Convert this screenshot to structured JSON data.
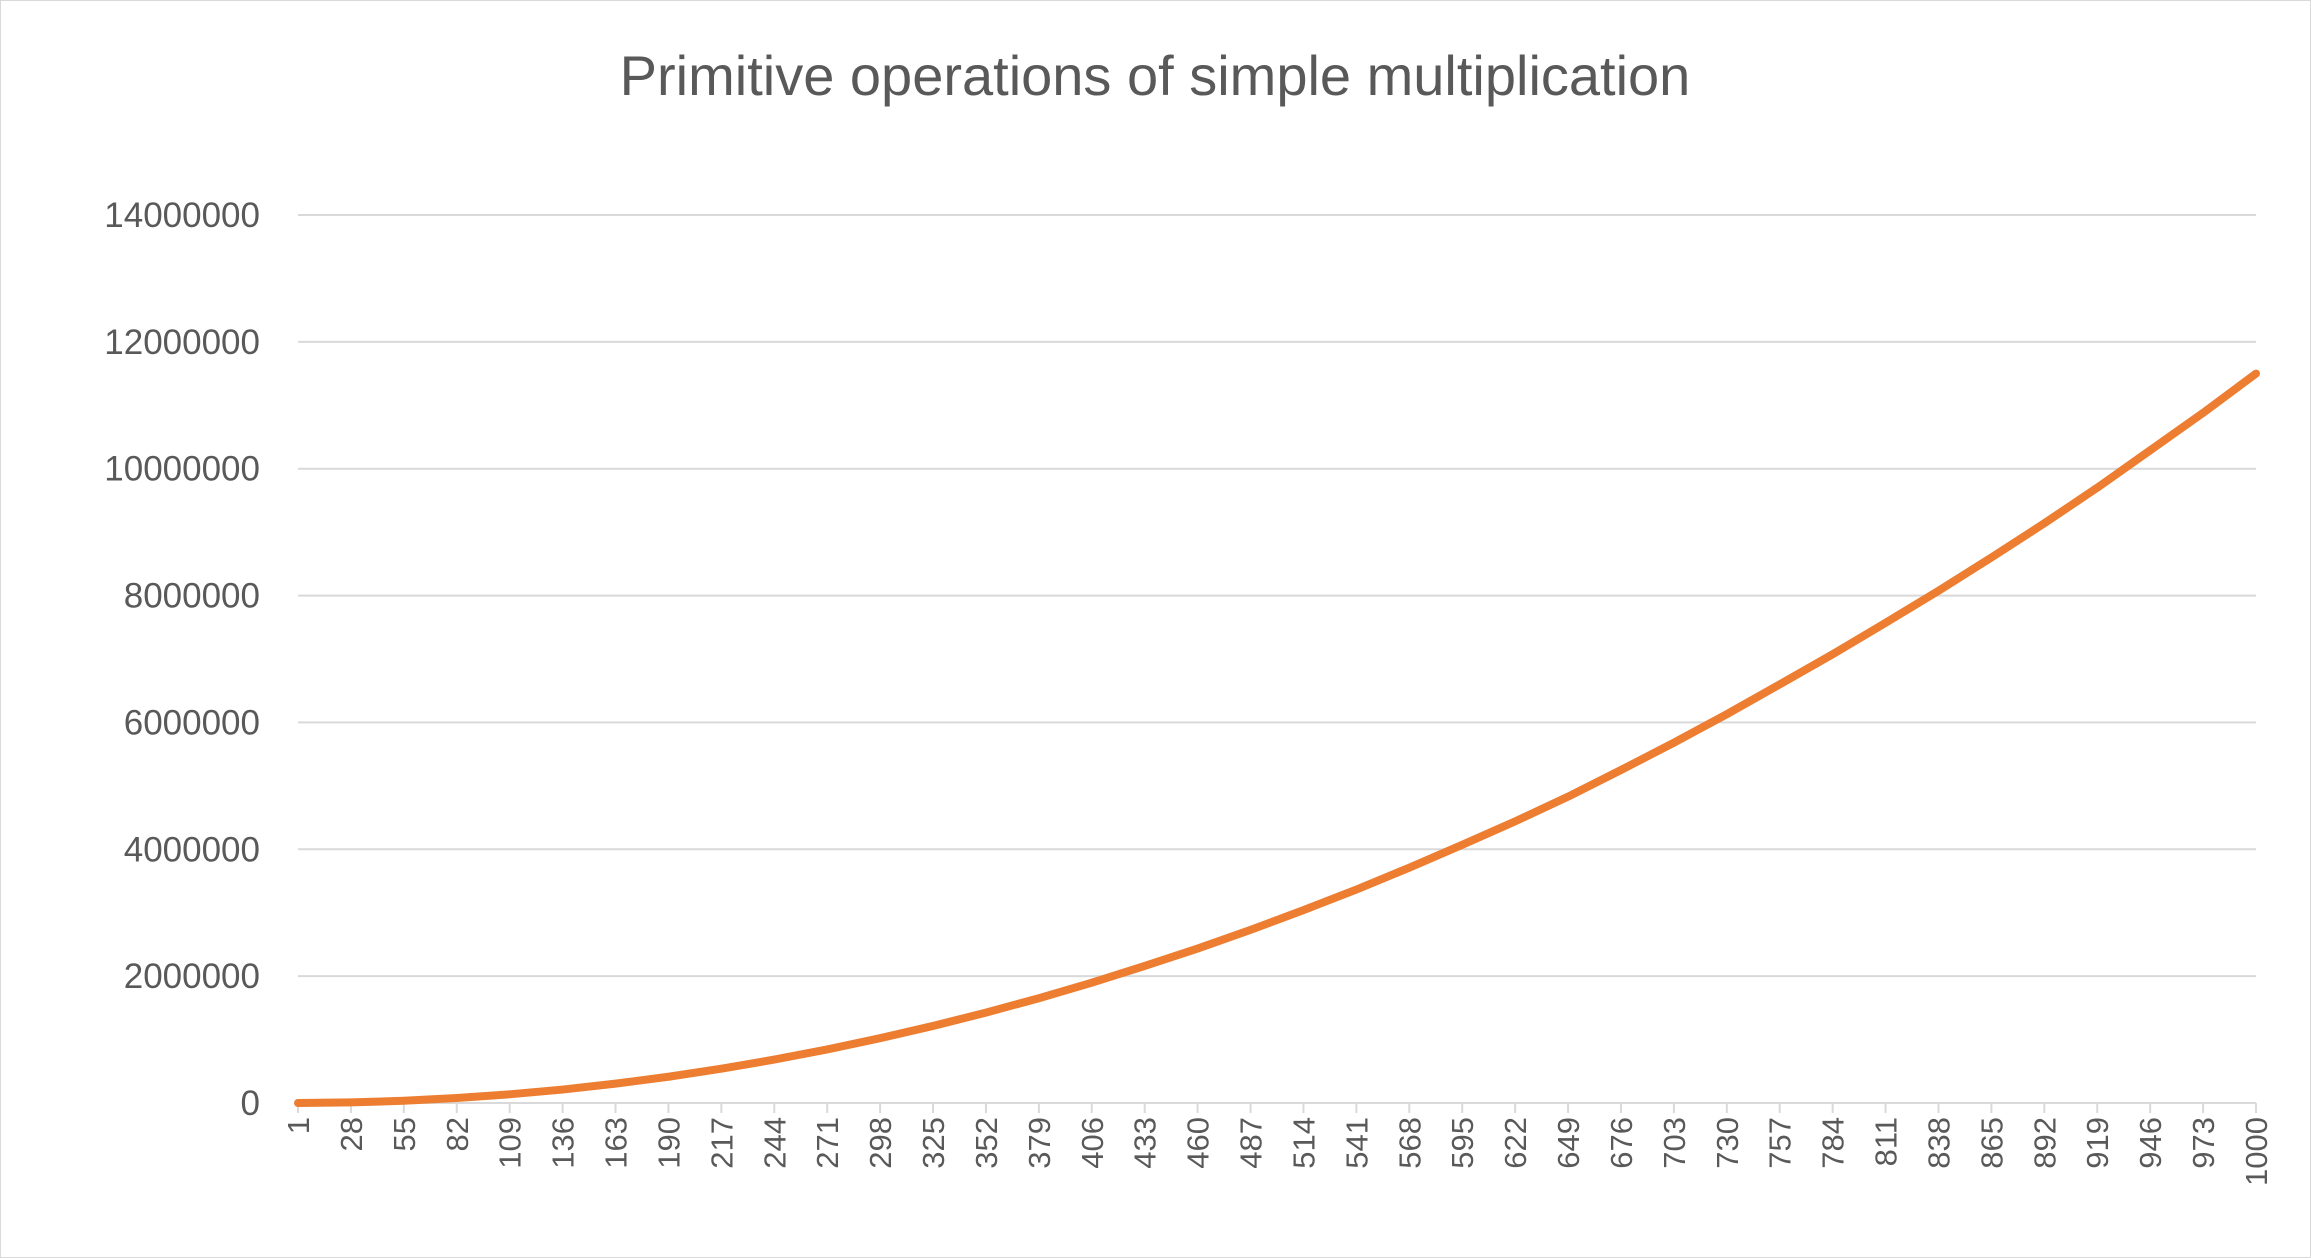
{
  "chart_data": {
    "type": "line",
    "title": "Primitive operations of simple multiplication",
    "xlabel": "",
    "ylabel": "",
    "x_start": 1,
    "x_end": 1000,
    "x_tick_labels": [
      "1",
      "28",
      "55",
      "82",
      "109",
      "136",
      "163",
      "190",
      "217",
      "244",
      "271",
      "298",
      "325",
      "352",
      "379",
      "406",
      "433",
      "460",
      "487",
      "514",
      "541",
      "568",
      "595",
      "622",
      "649",
      "676",
      "703",
      "730",
      "757",
      "784",
      "811",
      "838",
      "865",
      "892",
      "919",
      "946",
      "973",
      "1000"
    ],
    "y_ticks": [
      0,
      2000000,
      4000000,
      6000000,
      8000000,
      10000000,
      12000000,
      14000000
    ],
    "y_tick_labels": [
      "0",
      "2000000",
      "4000000",
      "6000000",
      "8000000",
      "10000000",
      "12000000",
      "14000000"
    ],
    "ylim": [
      0,
      14000000
    ],
    "grid": true,
    "legend": "none",
    "series": [
      {
        "color": "#ed7d31",
        "x": [
          1,
          28,
          55,
          82,
          109,
          136,
          163,
          190,
          217,
          244,
          271,
          298,
          325,
          352,
          379,
          406,
          433,
          460,
          487,
          514,
          541,
          568,
          595,
          622,
          649,
          676,
          703,
          730,
          757,
          784,
          811,
          838,
          865,
          892,
          919,
          946,
          973,
          1000
        ],
        "values": [
          12,
          9000,
          35000,
          78000,
          137000,
          212000,
          305000,
          414000,
          541000,
          684000,
          845000,
          1022000,
          1215000,
          1425000,
          1652000,
          1897000,
          2160000,
          2435000,
          2730000,
          3040000,
          3365000,
          3710000,
          4070000,
          4440000,
          4830000,
          5250000,
          5680000,
          6130000,
          6600000,
          7075000,
          7570000,
          8075000,
          8600000,
          9140000,
          9700000,
          10290000,
          10880000,
          11500000
        ]
      }
    ]
  }
}
